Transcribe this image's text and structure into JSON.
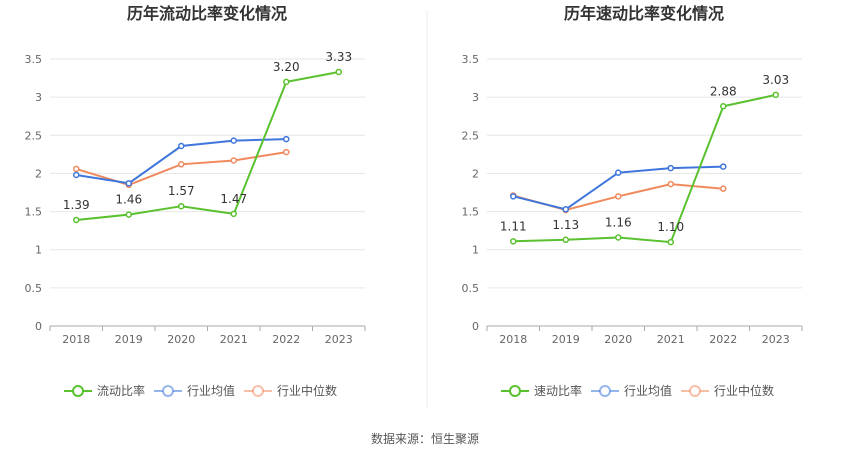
{
  "source_text": "数据来源：恒生聚源",
  "chart_data": [
    {
      "type": "line",
      "title": "历年流动比率变化情况",
      "categories": [
        "2018",
        "2019",
        "2020",
        "2021",
        "2022",
        "2023"
      ],
      "ylim": [
        0,
        3.5
      ],
      "yticks": [
        "0",
        "0.5",
        "1",
        "1.5",
        "2",
        "2.5",
        "3",
        "3.5"
      ],
      "grid": true,
      "legend_position": "bottom",
      "series": [
        {
          "name": "流动比率",
          "color": "#5ac12e",
          "values": [
            1.39,
            1.46,
            1.57,
            1.47,
            3.2,
            3.33
          ],
          "labels": [
            "1.39",
            "1.46",
            "1.57",
            "1.47",
            "3.20",
            "3.33"
          ]
        },
        {
          "name": "行业均值",
          "color": "#3f76dd",
          "values": [
            1.98,
            1.87,
            2.36,
            2.43,
            2.45,
            null
          ]
        },
        {
          "name": "行业中位数",
          "color": "#f08a5d",
          "values": [
            2.06,
            1.85,
            2.12,
            2.17,
            2.28,
            null
          ]
        }
      ]
    },
    {
      "type": "line",
      "title": "历年速动比率变化情况",
      "categories": [
        "2018",
        "2019",
        "2020",
        "2021",
        "2022",
        "2023"
      ],
      "ylim": [
        0,
        3.5
      ],
      "yticks": [
        "0",
        "0.5",
        "1",
        "1.5",
        "2",
        "2.5",
        "3",
        "3.5"
      ],
      "grid": true,
      "legend_position": "bottom",
      "series": [
        {
          "name": "速动比率",
          "color": "#5ac12e",
          "values": [
            1.11,
            1.13,
            1.16,
            1.1,
            2.88,
            3.03
          ],
          "labels": [
            "1.11",
            "1.13",
            "1.16",
            "1.10",
            "2.88",
            "3.03"
          ]
        },
        {
          "name": "行业均值",
          "color": "#3f76dd",
          "values": [
            1.7,
            1.53,
            2.01,
            2.07,
            2.09,
            null
          ]
        },
        {
          "name": "行业中位数",
          "color": "#f08a5d",
          "values": [
            1.71,
            1.52,
            1.7,
            1.86,
            1.8,
            null
          ]
        }
      ]
    }
  ]
}
